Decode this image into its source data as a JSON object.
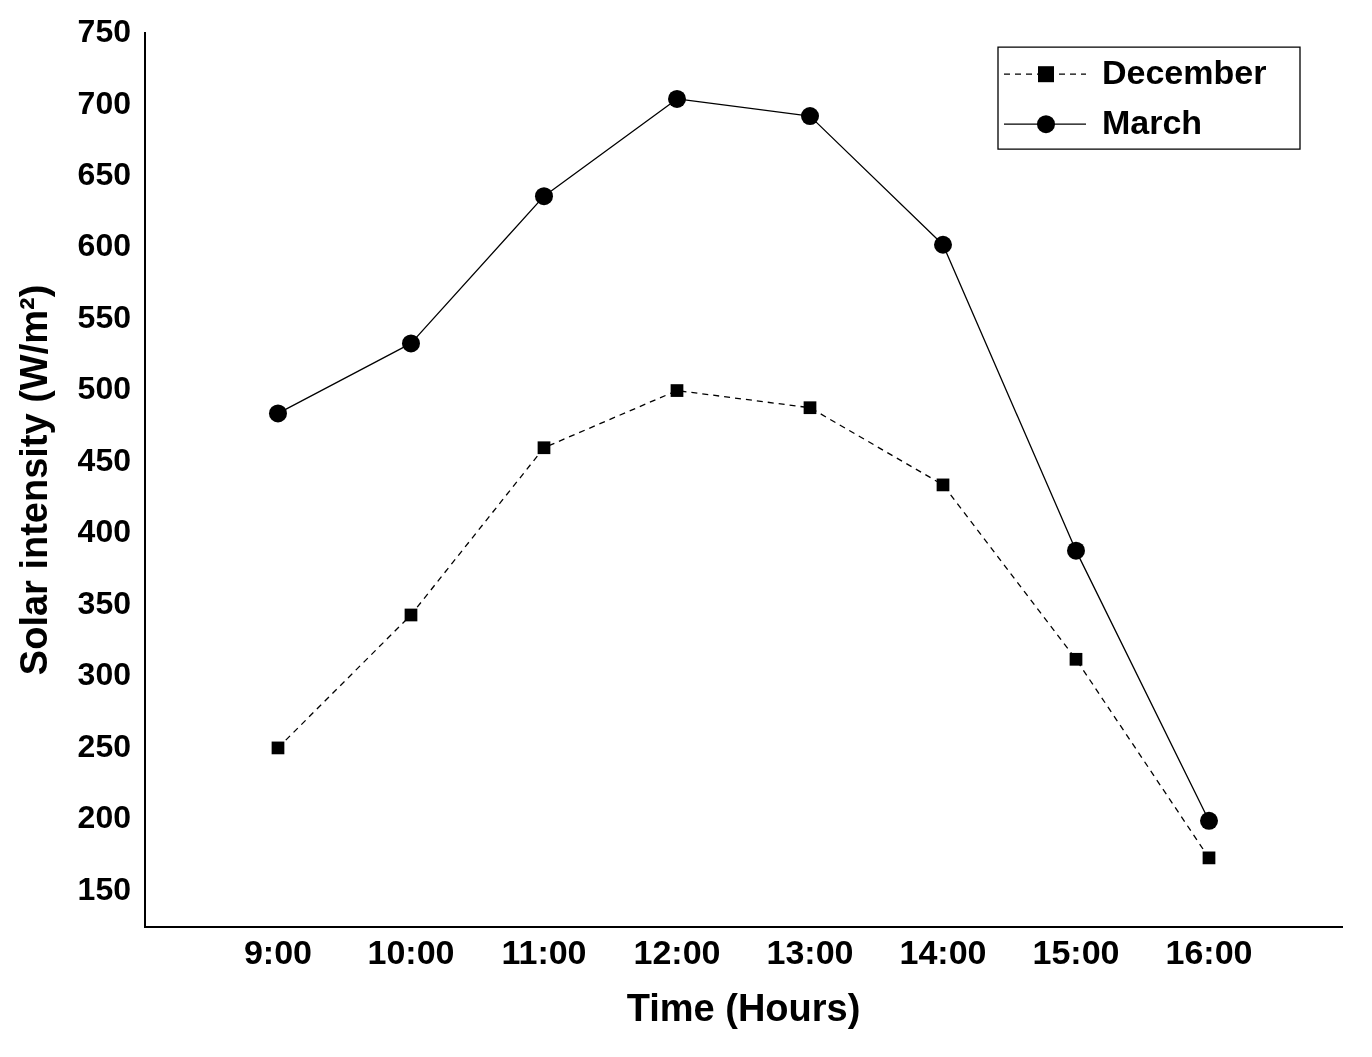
{
  "chart_data": {
    "type": "line",
    "xlabel": "Time (Hours)",
    "ylabel": "Solar intensity (W/m²)",
    "categories": [
      "9:00",
      "10:00",
      "11:00",
      "12:00",
      "13:00",
      "14:00",
      "15:00",
      "16:00"
    ],
    "series": [
      {
        "name": "December",
        "color": "#000000",
        "marker": "square",
        "line_style": "dashed",
        "values": [
          250,
          343,
          460,
          500,
          488,
          434,
          312,
          173
        ]
      },
      {
        "name": "March",
        "color": "#000000",
        "marker": "circle",
        "line_style": "solid",
        "values": [
          484,
          533,
          636,
          704,
          692,
          602,
          388,
          199
        ]
      }
    ],
    "ylim": [
      125,
      750
    ],
    "yticks": [
      150,
      200,
      250,
      300,
      350,
      400,
      450,
      500,
      550,
      600,
      650,
      700,
      750
    ],
    "grid": false,
    "legend": "top right"
  }
}
